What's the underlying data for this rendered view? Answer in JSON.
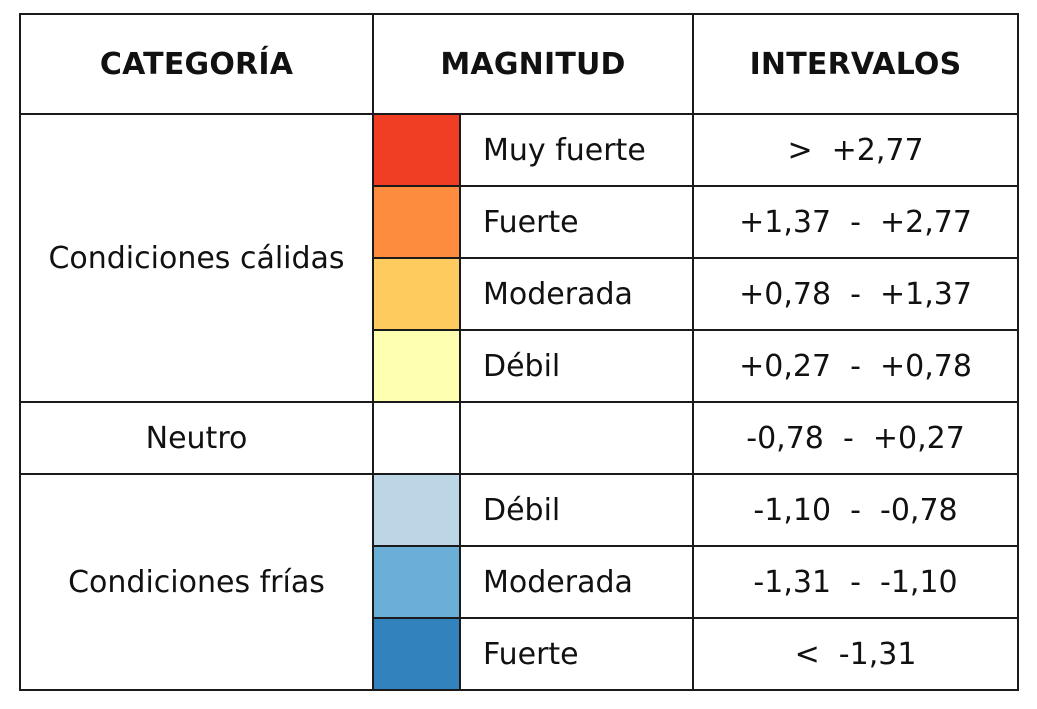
{
  "headers": {
    "category": "CATEGORÍA",
    "magnitude": "MAGNITUD",
    "intervals": "INTERVALOS"
  },
  "groups": {
    "warm": "Condiciones cálidas",
    "neutral": "Neutro",
    "cold": "Condiciones frías"
  },
  "rows": [
    {
      "magnitude": "Muy fuerte",
      "interval": ">  +2,77",
      "color": "#ef3e23"
    },
    {
      "magnitude": "Fuerte",
      "interval": "+1,37  -  +2,77",
      "color": "#fd8c3e"
    },
    {
      "magnitude": "Moderada",
      "interval": "+0,78  -  +1,37",
      "color": "#fecb5e"
    },
    {
      "magnitude": "Débil",
      "interval": "+0,27  -  +0,78",
      "color": "#ffffb2"
    },
    {
      "magnitude": "",
      "interval": "-0,78  -  +0,27",
      "color": "#ffffff"
    },
    {
      "magnitude": "Débil",
      "interval": "-1,10  -  -0,78",
      "color": "#bdd6e6"
    },
    {
      "magnitude": "Moderada",
      "interval": "-1,31  -  -1,10",
      "color": "#6baed6"
    },
    {
      "magnitude": "Fuerte",
      "interval": "<  -1,31",
      "color": "#3182bd"
    }
  ]
}
